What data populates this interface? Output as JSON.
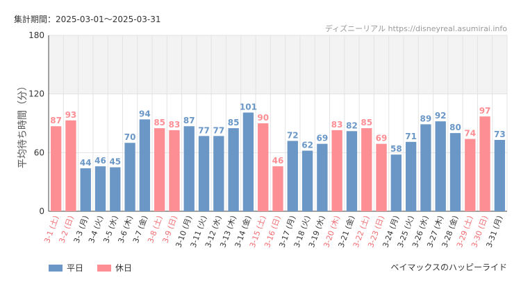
{
  "header": {
    "period_label": "集計期間：2025-03-01～2025-03-31",
    "source": "ディズニーリアル https://disneyreal.asumirai.info"
  },
  "footer": {
    "attraction": "ベイマックスのハッピーライド"
  },
  "colors": {
    "weekday": "#6a97c6",
    "holiday": "#fd8f94",
    "band": "#f3f3f3",
    "grid": "#e3e3e3",
    "axis": "#444444"
  },
  "chart_data": {
    "type": "bar",
    "ylabel": "平均待ち時間（分）",
    "ylim": [
      0,
      180
    ],
    "yticks": [
      0,
      60,
      120,
      180
    ],
    "highlight_band": [
      120,
      180
    ],
    "grid": true,
    "legend_position": "bottom-left",
    "series": [
      {
        "name": "平日"
      },
      {
        "name": "休日"
      }
    ],
    "categories": [
      "3-1 (土)",
      "3-2 (日)",
      "3-3 (月)",
      "3-4 (火)",
      "3-5 (水)",
      "3-6 (木)",
      "3-7 (金)",
      "3-8 (土)",
      "3-9 (日)",
      "3-10 (月)",
      "3-11 (火)",
      "3-12 (水)",
      "3-13 (木)",
      "3-14 (金)",
      "3-15 (土)",
      "3-16 (日)",
      "3-17 (月)",
      "3-18 (火)",
      "3-19 (水)",
      "3-20 (木)",
      "3-21 (金)",
      "3-22 (土)",
      "3-23 (日)",
      "3-24 (月)",
      "3-25 (火)",
      "3-26 (水)",
      "3-27 (木)",
      "3-28 (金)",
      "3-29 (土)",
      "3-30 (日)",
      "3-31 (月)"
    ],
    "values": [
      87,
      93,
      44,
      46,
      45,
      70,
      94,
      85,
      83,
      87,
      77,
      77,
      85,
      101,
      90,
      46,
      72,
      62,
      69,
      83,
      82,
      85,
      69,
      58,
      71,
      89,
      92,
      80,
      74,
      97,
      73
    ],
    "day_type": [
      "休日",
      "休日",
      "平日",
      "平日",
      "平日",
      "平日",
      "平日",
      "休日",
      "休日",
      "平日",
      "平日",
      "平日",
      "平日",
      "平日",
      "休日",
      "休日",
      "平日",
      "平日",
      "平日",
      "休日",
      "平日",
      "休日",
      "休日",
      "平日",
      "平日",
      "平日",
      "平日",
      "平日",
      "休日",
      "休日",
      "平日"
    ]
  }
}
